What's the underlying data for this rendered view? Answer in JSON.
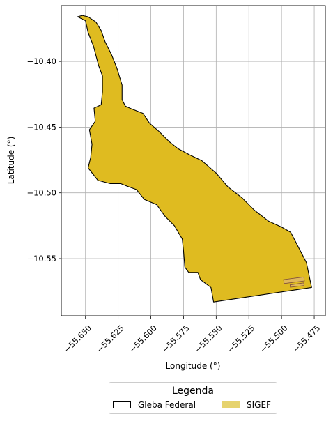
{
  "colors": {
    "plot_background": "#ffffff",
    "grid": "#b0b0b0",
    "gleba_fill": "none",
    "gleba_edge": "#000000",
    "sigef_fill": "#dfbb20",
    "sigef_legend_fill": "#e6d36e",
    "sigef_small_parcel_fill": "#e0b85a",
    "sigef_small_parcel_edge": "#7a4a3a"
  },
  "axes": {
    "xlabel": "Longitude (°)",
    "ylabel": "Latitude (°)",
    "xlim": [
      -55.6685,
      -55.4665
    ],
    "ylim": [
      -10.5935,
      -10.3575
    ],
    "xticks": [
      {
        "value": -55.65,
        "label": "−55.650"
      },
      {
        "value": -55.625,
        "label": "−55.625"
      },
      {
        "value": -55.6,
        "label": "−55.600"
      },
      {
        "value": -55.575,
        "label": "−55.575"
      },
      {
        "value": -55.55,
        "label": "−55.550"
      },
      {
        "value": -55.525,
        "label": "−55.525"
      },
      {
        "value": -55.5,
        "label": "−55.500"
      },
      {
        "value": -55.475,
        "label": "−55.475"
      }
    ],
    "yticks": [
      {
        "value": -10.4,
        "label": "−10.40"
      },
      {
        "value": -10.45,
        "label": "−10.45"
      },
      {
        "value": -10.5,
        "label": "−10.50"
      },
      {
        "value": -10.55,
        "label": "−10.55"
      }
    ],
    "grid": true,
    "xtick_rotation_deg": 45
  },
  "legend": {
    "title": "Legenda",
    "placement": "bottom-center",
    "items": [
      {
        "label": "Gleba Federal",
        "swatch": "outline"
      },
      {
        "label": "SIGEF",
        "swatch": "filled"
      }
    ]
  },
  "chart_data": {
    "type": "map",
    "xlabel": "Longitude (°)",
    "ylabel": "Latitude (°)",
    "xlim": [
      -55.6685,
      -55.4665
    ],
    "ylim": [
      -10.5935,
      -10.3575
    ],
    "grid": true,
    "layers": [
      {
        "name": "SIGEF",
        "kind": "polygon",
        "coords": [
          [
            -55.656,
            -10.366
          ],
          [
            -55.65,
            -10.369
          ],
          [
            -55.648,
            -10.378
          ],
          [
            -55.644,
            -10.388
          ],
          [
            -55.64,
            -10.403
          ],
          [
            -55.637,
            -10.411
          ],
          [
            -55.637,
            -10.423
          ],
          [
            -55.638,
            -10.433
          ],
          [
            -55.6435,
            -10.4355
          ],
          [
            -55.6425,
            -10.4455
          ],
          [
            -55.647,
            -10.452
          ],
          [
            -55.645,
            -10.463
          ],
          [
            -55.646,
            -10.473
          ],
          [
            -55.648,
            -10.481
          ],
          [
            -55.6405,
            -10.4905
          ],
          [
            -55.631,
            -10.493
          ],
          [
            -55.623,
            -10.493
          ],
          [
            -55.618,
            -10.495
          ],
          [
            -55.611,
            -10.4975
          ],
          [
            -55.605,
            -10.505
          ],
          [
            -55.5955,
            -10.509
          ],
          [
            -55.589,
            -10.518
          ],
          [
            -55.582,
            -10.525
          ],
          [
            -55.576,
            -10.535
          ],
          [
            -55.575,
            -10.544
          ],
          [
            -55.574,
            -10.5565
          ],
          [
            -55.571,
            -10.5605
          ],
          [
            -55.564,
            -10.5605
          ],
          [
            -55.562,
            -10.566
          ],
          [
            -55.554,
            -10.572
          ],
          [
            -55.552,
            -10.583
          ],
          [
            -55.477,
            -10.572
          ],
          [
            -55.481,
            -10.553
          ],
          [
            -55.493,
            -10.53
          ],
          [
            -55.5,
            -10.526
          ],
          [
            -55.51,
            -10.5215
          ],
          [
            -55.521,
            -10.513
          ],
          [
            -55.53,
            -10.504
          ],
          [
            -55.541,
            -10.4955
          ],
          [
            -55.55,
            -10.485
          ],
          [
            -55.561,
            -10.4755
          ],
          [
            -55.5705,
            -10.471
          ],
          [
            -55.579,
            -10.4665
          ],
          [
            -55.586,
            -10.461
          ],
          [
            -55.5935,
            -10.4535
          ],
          [
            -55.601,
            -10.447
          ],
          [
            -55.606,
            -10.4395
          ],
          [
            -55.615,
            -10.436
          ],
          [
            -55.6195,
            -10.434
          ],
          [
            -55.622,
            -10.429
          ],
          [
            -55.622,
            -10.418
          ],
          [
            -55.626,
            -10.405
          ],
          [
            -55.63,
            -10.395
          ],
          [
            -55.635,
            -10.385
          ],
          [
            -55.638,
            -10.3765
          ],
          [
            -55.642,
            -10.37
          ],
          [
            -55.648,
            -10.366
          ],
          [
            -55.6525,
            -10.365
          ],
          [
            -55.656,
            -10.366
          ]
        ]
      },
      {
        "name": "SIGEF",
        "kind": "polygon",
        "coords": [
          [
            -55.4985,
            -10.566
          ],
          [
            -55.483,
            -10.564
          ],
          [
            -55.4825,
            -10.567
          ],
          [
            -55.498,
            -10.569
          ],
          [
            -55.4985,
            -10.566
          ]
        ]
      },
      {
        "name": "SIGEF",
        "kind": "polygon",
        "coords": [
          [
            -55.4935,
            -10.57
          ],
          [
            -55.483,
            -10.5685
          ],
          [
            -55.4828,
            -10.5705
          ],
          [
            -55.4933,
            -10.5718
          ],
          [
            -55.4935,
            -10.57
          ]
        ]
      },
      {
        "name": "Gleba Federal",
        "kind": "outline",
        "ref_layer_index": 0
      }
    ]
  }
}
